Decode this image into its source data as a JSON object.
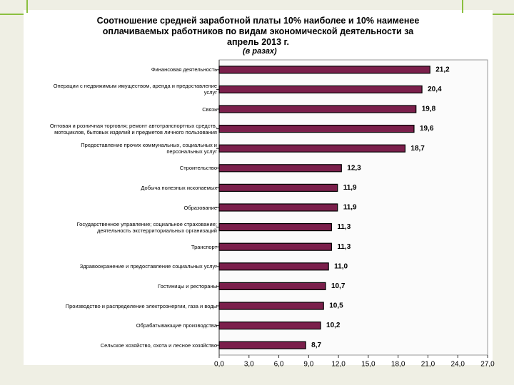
{
  "chart_data": {
    "type": "barh",
    "title": "Соотношение средней заработной платы 10% наиболее  и 10% наименее оплачиваемых работников по видам экономической деятельности за апрель 2013 г.",
    "subtitle": "(в разах)",
    "categories": [
      "Финансовая деятельность",
      "Операции с недвижимым имуществом, аренда и предоставление услуг",
      "Связь",
      "Оптовая и розничная торговля; ремонт автотранспортных средств, мотоциклов, бытовых изделий и предметов личного пользования",
      "Предоставление прочих коммунальных, социальных и персональных услуг",
      "Строительство",
      "Добыча полезных ископаемых",
      "Образование",
      "Государственное управление; социальное страхование; деятельность экстерриториальных организаций",
      "Транспорт",
      "Здравоохранение и предоставление социальных услуг",
      "Гостиницы и рестораны",
      "Производство и распределение электроэнергии, газа и воды",
      "Обрабатывающие производства",
      "Сельское хозяйство, охота и лесное хозяйство"
    ],
    "values": [
      21.2,
      20.4,
      19.8,
      19.6,
      18.7,
      12.3,
      11.9,
      11.9,
      11.3,
      11.3,
      11.0,
      10.7,
      10.5,
      10.2,
      8.7
    ],
    "value_labels": [
      "21,2",
      "20,4",
      "19,8",
      "19,6",
      "18,7",
      "12,3",
      "11,9",
      "11,9",
      "11,3",
      "11,3",
      "11,0",
      "10,7",
      "10,5",
      "10,2",
      "8,7"
    ],
    "color": "#7b1f4b",
    "xlim": [
      0,
      27
    ],
    "xticks": [
      {
        "value": 0,
        "label": "0,0"
      },
      {
        "value": 3,
        "label": "3,0"
      },
      {
        "value": 6,
        "label": "6,0"
      },
      {
        "value": 9,
        "label": "9,0"
      },
      {
        "value": 12,
        "label": "12,0"
      },
      {
        "value": 15,
        "label": "15,0"
      },
      {
        "value": 18,
        "label": "18,0"
      },
      {
        "value": 21,
        "label": "21,0"
      },
      {
        "value": 24,
        "label": "24,0"
      },
      {
        "value": 27,
        "label": "27,0"
      }
    ]
  }
}
